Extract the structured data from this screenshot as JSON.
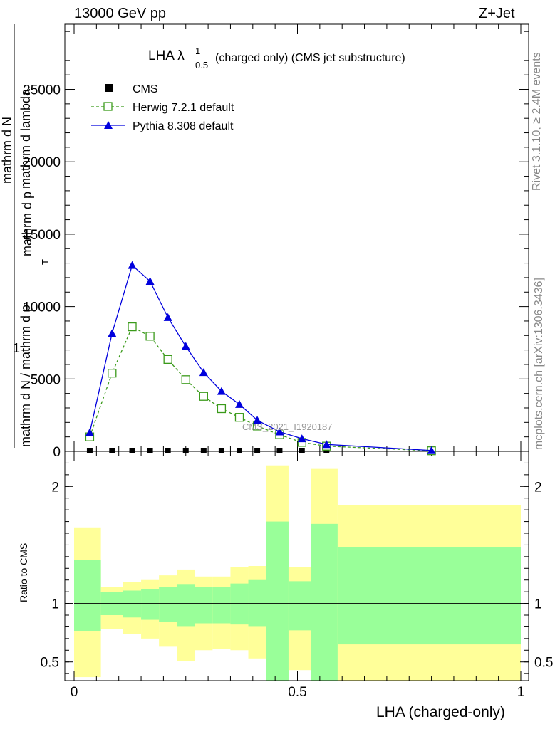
{
  "header": {
    "left": "13000 GeV pp",
    "right": "Z+Jet"
  },
  "side_labels": {
    "rivet": "Rivet 3.1.10, ≥ 2.4M events",
    "mcplots": "mcplots.cern.ch [arXiv:1306.3436]"
  },
  "chart_data": [
    {
      "type": "line",
      "title": "LHA λ",
      "title_sup": "1",
      "title_sub": "0.5",
      "title_rest": "(charged only) (CMS jet substructure)",
      "ylabel_numerator": "1",
      "ylabel_lines": [
        "mathrm d N / mathrm d p",
        "mathrm d p",
        "mathrm d N",
        "mathrm d lambda"
      ],
      "ylabel_t_marker": "T",
      "watermark": "CMS_2021_I1920187",
      "ylim": [
        0,
        29500
      ],
      "yticks": [
        0,
        5000,
        10000,
        15000,
        20000,
        25000
      ],
      "xlim": [
        0,
        1
      ],
      "x": [
        0.035,
        0.085,
        0.13,
        0.17,
        0.21,
        0.25,
        0.29,
        0.33,
        0.37,
        0.41,
        0.46,
        0.51,
        0.565,
        0.8
      ],
      "series": [
        {
          "name": "CMS",
          "color": "#000000",
          "marker": "square",
          "values": [
            0,
            0,
            0,
            0,
            0,
            0,
            0,
            0,
            0,
            0,
            0,
            0,
            0,
            0
          ]
        },
        {
          "name": "Herwig 7.2.1 default",
          "color": "#3a9a1a",
          "marker": "open-square",
          "values": [
            1000,
            5400,
            8600,
            7950,
            6350,
            4950,
            3800,
            2950,
            2350,
            1750,
            1150,
            620,
            360,
            40
          ]
        },
        {
          "name": "Pythia 8.308 default",
          "color": "#0000dd",
          "marker": "triangle",
          "values": [
            1300,
            8150,
            12850,
            11750,
            9250,
            7250,
            5450,
            4150,
            3250,
            2150,
            1350,
            880,
            480,
            60
          ]
        }
      ],
      "legend": "top-left"
    },
    {
      "type": "area",
      "ylabel": "Ratio to CMS",
      "xlabel": "LHA (charged-only)",
      "ylim": [
        0.34,
        2.3
      ],
      "yticks": [
        0.5,
        1,
        2
      ],
      "xticks": [
        0,
        0.5,
        1
      ],
      "xtick_labels": [
        "0",
        "0.5",
        "1"
      ],
      "reference": 1,
      "bins": [
        {
          "lo": 0.0,
          "hi": 0.06,
          "outer": [
            0.37,
            1.65
          ],
          "inner": [
            0.76,
            1.37
          ]
        },
        {
          "lo": 0.06,
          "hi": 0.11,
          "outer": [
            0.78,
            1.14
          ],
          "inner": [
            0.9,
            1.1
          ]
        },
        {
          "lo": 0.11,
          "hi": 0.15,
          "outer": [
            0.74,
            1.18
          ],
          "inner": [
            0.88,
            1.11
          ]
        },
        {
          "lo": 0.15,
          "hi": 0.19,
          "outer": [
            0.7,
            1.2
          ],
          "inner": [
            0.86,
            1.12
          ]
        },
        {
          "lo": 0.19,
          "hi": 0.23,
          "outer": [
            0.63,
            1.24
          ],
          "inner": [
            0.84,
            1.14
          ]
        },
        {
          "lo": 0.23,
          "hi": 0.27,
          "outer": [
            0.51,
            1.29
          ],
          "inner": [
            0.8,
            1.16
          ]
        },
        {
          "lo": 0.27,
          "hi": 0.31,
          "outer": [
            0.6,
            1.23
          ],
          "inner": [
            0.83,
            1.14
          ]
        },
        {
          "lo": 0.31,
          "hi": 0.35,
          "outer": [
            0.61,
            1.23
          ],
          "inner": [
            0.83,
            1.14
          ]
        },
        {
          "lo": 0.35,
          "hi": 0.39,
          "outer": [
            0.6,
            1.31
          ],
          "inner": [
            0.82,
            1.17
          ]
        },
        {
          "lo": 0.39,
          "hi": 0.43,
          "outer": [
            0.53,
            1.32
          ],
          "inner": [
            0.8,
            1.2
          ]
        },
        {
          "lo": 0.43,
          "hi": 0.48,
          "outer": [
            0.34,
            2.18
          ],
          "inner": [
            0.34,
            1.7
          ]
        },
        {
          "lo": 0.48,
          "hi": 0.53,
          "outer": [
            0.43,
            1.31
          ],
          "inner": [
            0.77,
            1.19
          ]
        },
        {
          "lo": 0.53,
          "hi": 0.59,
          "outer": [
            0.34,
            2.15
          ],
          "inner": [
            0.34,
            1.68
          ]
        },
        {
          "lo": 0.59,
          "hi": 1.0,
          "outer": [
            0.34,
            1.84
          ],
          "inner": [
            0.65,
            1.48
          ]
        }
      ],
      "band_colors": {
        "outer": "#ffff99",
        "inner": "#99ff99"
      }
    }
  ]
}
